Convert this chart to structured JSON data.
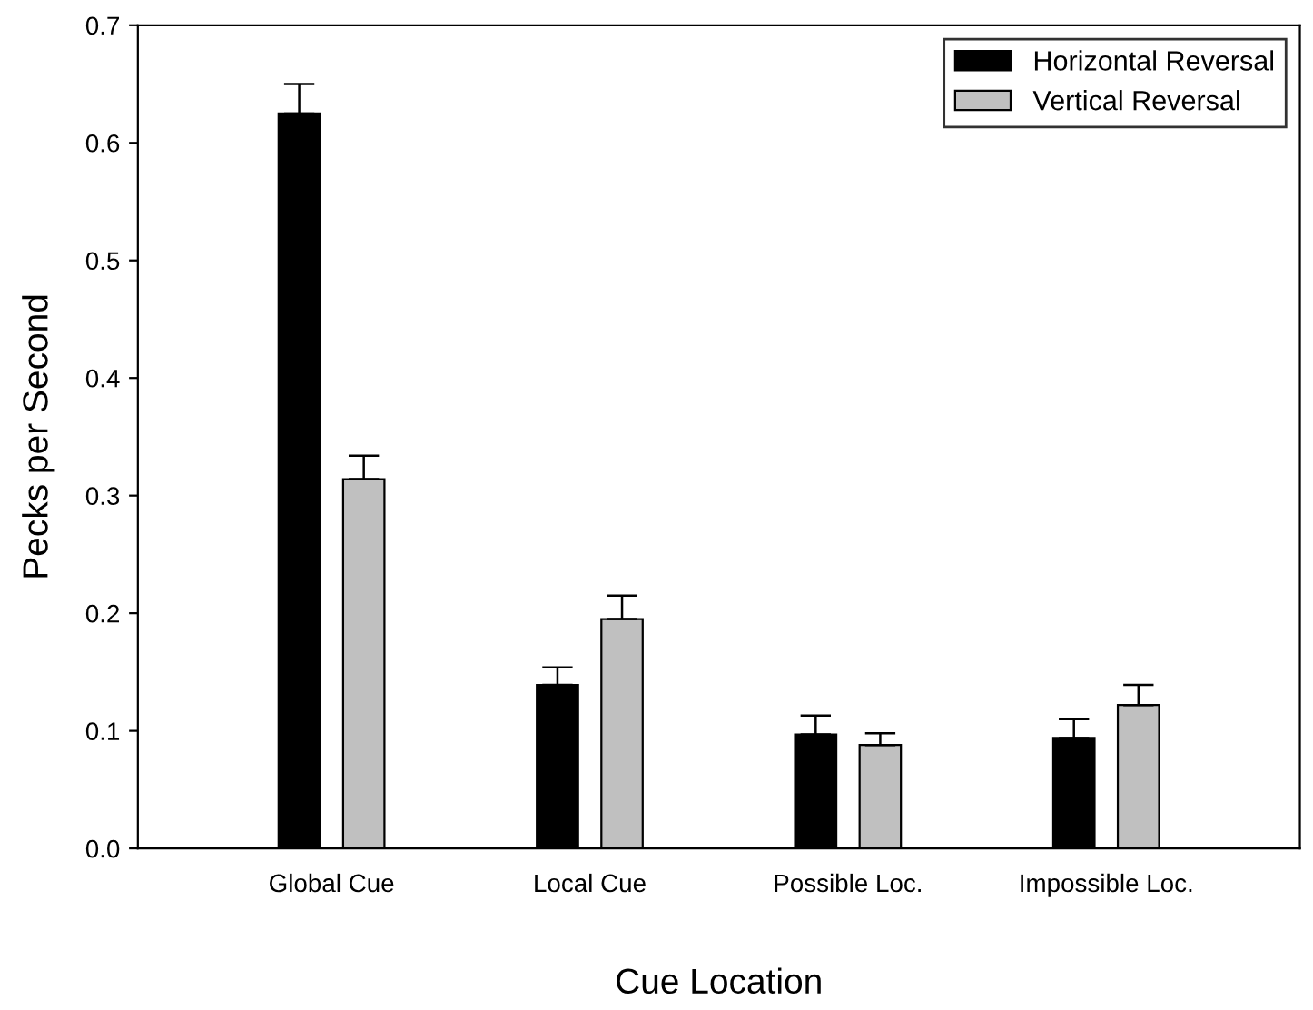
{
  "chart_data": {
    "type": "bar",
    "xlabel": "Cue Location",
    "ylabel": "Pecks per Second",
    "categories": [
      "Global Cue",
      "Local Cue",
      "Possible Loc.",
      "Impossible Loc."
    ],
    "series": [
      {
        "name": "Horizontal Reversal",
        "color": "#000000",
        "values": [
          0.625,
          0.139,
          0.097,
          0.094
        ],
        "errors": [
          [
            0.625,
            0.65
          ],
          [
            0.139,
            0.154
          ],
          [
            0.097,
            0.113
          ],
          [
            0.094,
            0.11
          ]
        ]
      },
      {
        "name": "Vertical Reversal",
        "color": "#c0c0c0",
        "values": [
          0.314,
          0.195,
          0.088,
          0.122
        ],
        "errors": [
          [
            0.314,
            0.334
          ],
          [
            0.195,
            0.215
          ],
          [
            0.088,
            0.098
          ],
          [
            0.122,
            0.139
          ]
        ]
      }
    ],
    "ylim": [
      0,
      0.7
    ],
    "yticks": [
      {
        "value": 0,
        "label": "0.0"
      },
      0.1,
      0.2,
      0.3,
      0.4,
      0.5,
      0.6,
      0.7
    ],
    "legend": "top right",
    "grid": false
  }
}
